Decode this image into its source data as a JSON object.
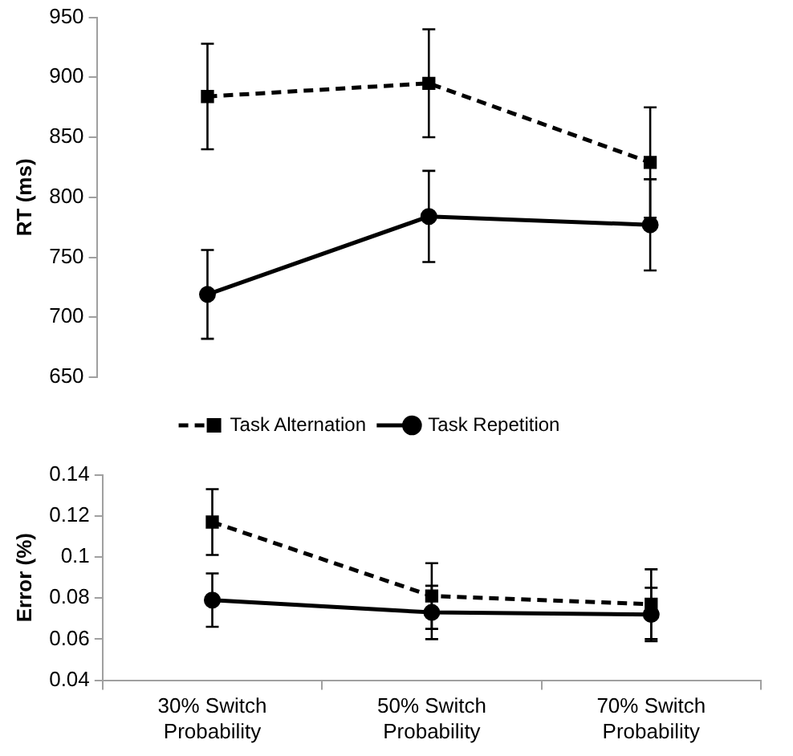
{
  "chart_data": [
    {
      "type": "line",
      "ylabel": "RT (ms)",
      "categories": [
        null,
        null,
        null
      ],
      "ylim": [
        650,
        950
      ],
      "yticks": [
        650,
        700,
        750,
        800,
        850,
        900,
        950
      ],
      "grid": false,
      "legend": "bottom",
      "tick_labels": "y",
      "series": [
        {
          "name": "Task Alternation",
          "color": "#000000",
          "marker": "square",
          "line_style": "dashed",
          "values": [
            884,
            895,
            829
          ],
          "errors": [
            44,
            45,
            46
          ]
        },
        {
          "name": "Task Repetition",
          "color": "#000000",
          "marker": "circle",
          "line_style": "solid",
          "values": [
            719,
            784,
            777
          ],
          "errors": [
            37,
            38,
            38
          ]
        }
      ]
    },
    {
      "type": "line",
      "ylabel": "Error (%)",
      "categories": [
        "30% Switch Probability",
        "50% Switch Probability",
        "70% Switch Probability"
      ],
      "ylim": [
        0.04,
        0.14
      ],
      "yticks": [
        0.04,
        0.06,
        0.08,
        {
          "value": 0.1,
          "label": "0.1"
        },
        0.12,
        0.14
      ],
      "grid": false,
      "legend": false,
      "series": [
        {
          "color": "#000000",
          "marker": "square",
          "line_style": "dashed",
          "values": [
            0.117,
            0.081,
            0.077
          ],
          "errors": [
            0.016,
            0.016,
            0.017
          ]
        },
        {
          "color": "#000000",
          "marker": "circle",
          "line_style": "solid",
          "values": [
            0.079,
            0.073,
            0.072
          ],
          "errors": [
            0.013,
            0.013,
            0.013
          ]
        }
      ]
    }
  ]
}
